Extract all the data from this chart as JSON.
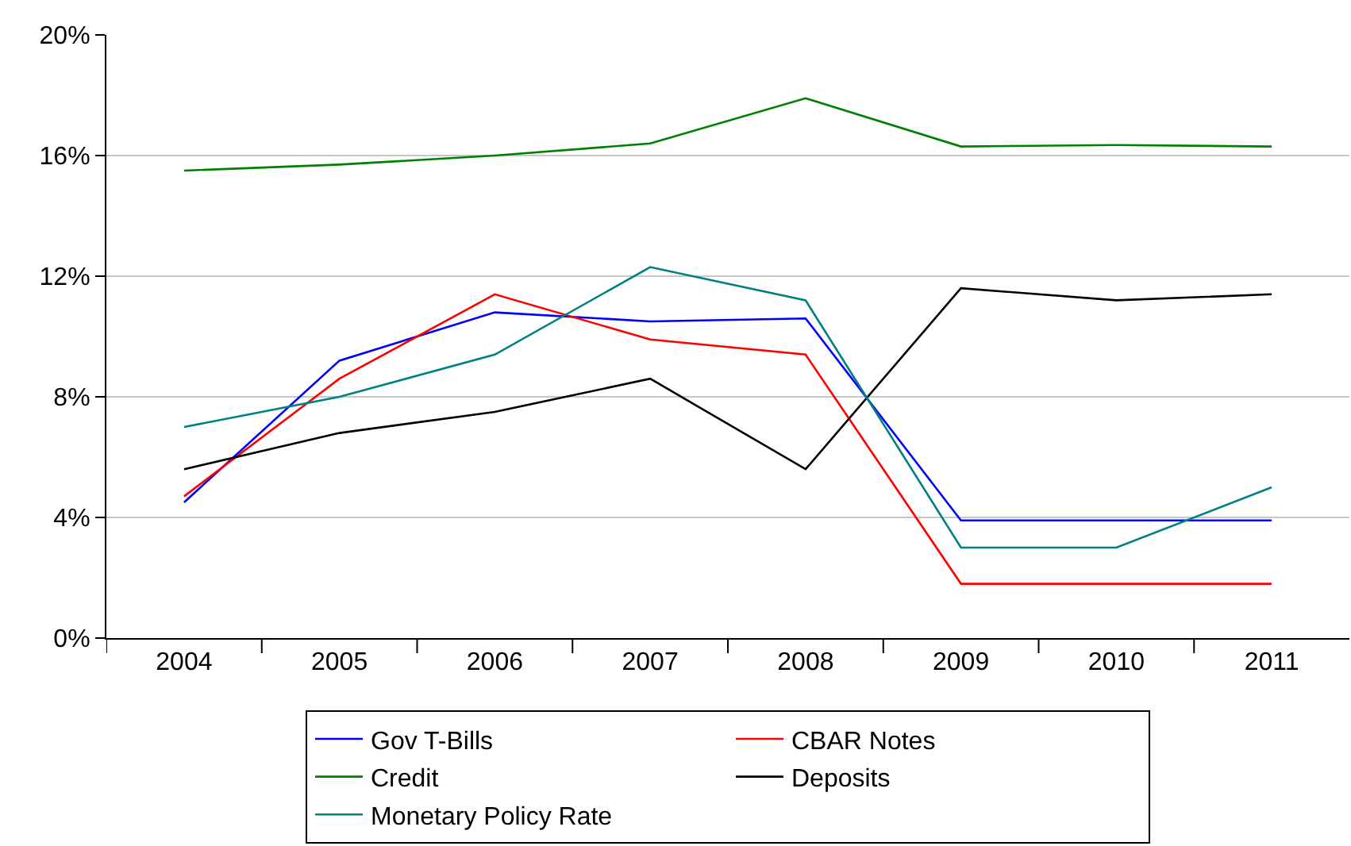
{
  "chart_data": {
    "type": "line",
    "categories": [
      "2004",
      "2005",
      "2006",
      "2007",
      "2008",
      "2009",
      "2010",
      "2011"
    ],
    "ylim": [
      0,
      20
    ],
    "yticks": [
      {
        "value": 0,
        "label": "0%"
      },
      {
        "value": 4,
        "label": "4%"
      },
      {
        "value": 8,
        "label": "8%"
      },
      {
        "value": 12,
        "label": "12%"
      },
      {
        "value": 16,
        "label": "16%"
      },
      {
        "value": 20,
        "label": "20%"
      }
    ],
    "grid": "y",
    "legend": "bottom",
    "marker": "none",
    "line_style": "solid",
    "series": [
      {
        "name": "Gov T-Bills",
        "color": "#0000ff",
        "values": [
          4.5,
          9.2,
          10.8,
          10.5,
          10.6,
          3.9,
          3.9,
          3.9
        ]
      },
      {
        "name": "CBAR Notes",
        "color": "#ff0000",
        "values": [
          4.7,
          8.6,
          11.4,
          9.9,
          9.4,
          1.8,
          1.8,
          1.8
        ]
      },
      {
        "name": "Credit",
        "color": "#008000",
        "values": [
          15.5,
          15.7,
          16.0,
          16.4,
          17.9,
          16.3,
          16.35,
          16.3
        ]
      },
      {
        "name": "Deposits",
        "color": "#000000",
        "values": [
          5.6,
          6.8,
          7.5,
          8.6,
          5.6,
          11.6,
          11.2,
          11.4
        ]
      },
      {
        "name": "Monetary Policy Rate",
        "color": "#008080",
        "values": [
          7.0,
          8.0,
          9.4,
          12.3,
          11.2,
          3.0,
          3.0,
          5.0
        ]
      }
    ]
  }
}
